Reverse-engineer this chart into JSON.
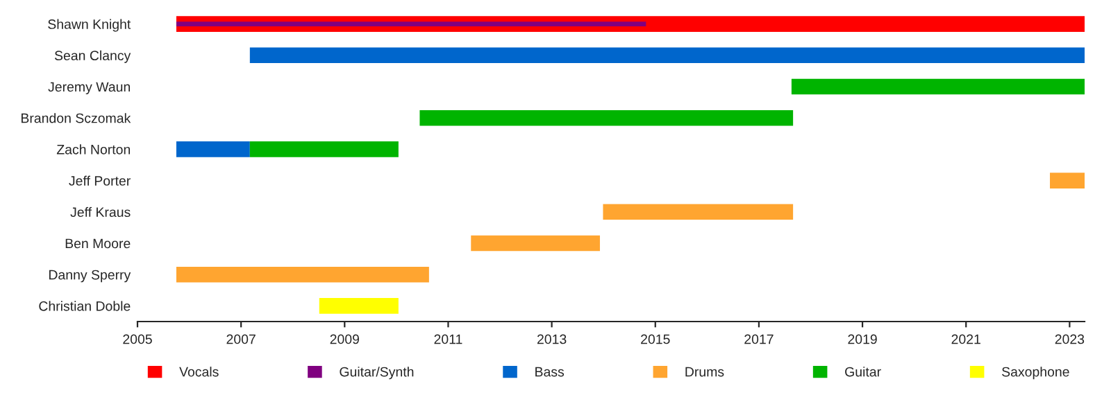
{
  "chart_data": {
    "type": "bar",
    "orientation": "horizontal",
    "categories": [
      "Shawn Knight",
      "Sean Clancy",
      "Jeremy Waun",
      "Brandon Sczomak",
      "Zach Norton",
      "Jeff Porter",
      "Jeff Kraus",
      "Ben Moore",
      "Danny Sperry",
      "Christian Doble"
    ],
    "series": [
      {
        "name": "Vocals",
        "color": "#ff0000",
        "base": [
          2005.75,
          null,
          null,
          null,
          null,
          null,
          null,
          null,
          null,
          null
        ],
        "values": [
          17.54,
          null,
          null,
          null,
          null,
          null,
          null,
          null,
          null,
          null
        ]
      },
      {
        "name": "Guitar/Synth",
        "color": "#800080",
        "base": [
          2005.75,
          null,
          null,
          null,
          null,
          null,
          null,
          null,
          null,
          null
        ],
        "values": [
          9.07,
          null,
          null,
          null,
          null,
          null,
          null,
          null,
          null,
          null
        ]
      },
      {
        "name": "Bass",
        "color": "#0066cc",
        "base": [
          null,
          2007.17,
          null,
          null,
          2005.75,
          null,
          null,
          null,
          null,
          null
        ],
        "values": [
          null,
          16.12,
          null,
          null,
          1.42,
          null,
          null,
          null,
          null,
          null
        ]
      },
      {
        "name": "Drums",
        "color": "#ffa530",
        "base": [
          null,
          null,
          null,
          null,
          null,
          2022.62,
          2013.99,
          2011.44,
          2005.75,
          null
        ],
        "values": [
          null,
          null,
          null,
          null,
          null,
          0.67,
          3.67,
          2.49,
          4.88,
          null
        ]
      },
      {
        "name": "Guitar",
        "color": "#00b400",
        "base": [
          null,
          null,
          2017.63,
          2010.45,
          2007.17,
          null,
          null,
          null,
          null,
          null
        ],
        "values": [
          null,
          null,
          5.66,
          7.21,
          2.87,
          null,
          null,
          null,
          null,
          null
        ]
      },
      {
        "name": "Saxophone",
        "color": "#ffff00",
        "base": [
          null,
          null,
          null,
          null,
          null,
          null,
          null,
          null,
          null,
          2008.51
        ],
        "values": [
          null,
          null,
          null,
          null,
          null,
          null,
          null,
          null,
          null,
          1.53
        ]
      }
    ],
    "xlim": [
      2005,
      2023.29
    ],
    "xticks": [
      2005,
      2007,
      2009,
      2011,
      2013,
      2015,
      2017,
      2019,
      2021,
      2023
    ],
    "legend": "bottom",
    "grid": false
  }
}
